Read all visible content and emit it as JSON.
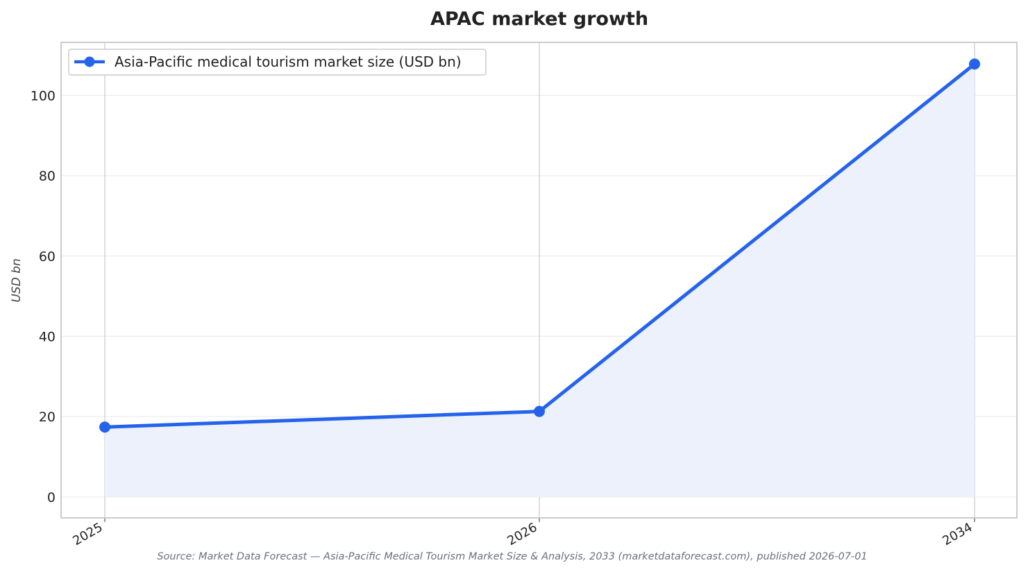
{
  "chart_data": {
    "type": "line",
    "title": "APAC market growth",
    "ylabel": "USD bn",
    "xlabel": "",
    "x": [
      "2025",
      "2026",
      "2034"
    ],
    "series": [
      {
        "name": "Asia-Pacific medical tourism market size (USD bn)",
        "values": [
          17.4,
          21.3,
          107.8
        ]
      }
    ],
    "ylim": [
      -5.2,
      113.2
    ],
    "yticks": [
      0,
      20,
      40,
      60,
      80,
      100
    ],
    "grid": true,
    "area_fill": true,
    "legend_position": "top-left",
    "colors": {
      "line": "#2563eb",
      "fill": "#ecf1fc",
      "grid": "#ebebeb",
      "vgrid": "#c8c8cc",
      "frame": "#c7c7c7"
    },
    "source": "Source: Market Data Forecast — Asia-Pacific Medical Tourism Market Size & Analysis, 2033 (marketdataforecast.com), published 2026-07-01"
  }
}
